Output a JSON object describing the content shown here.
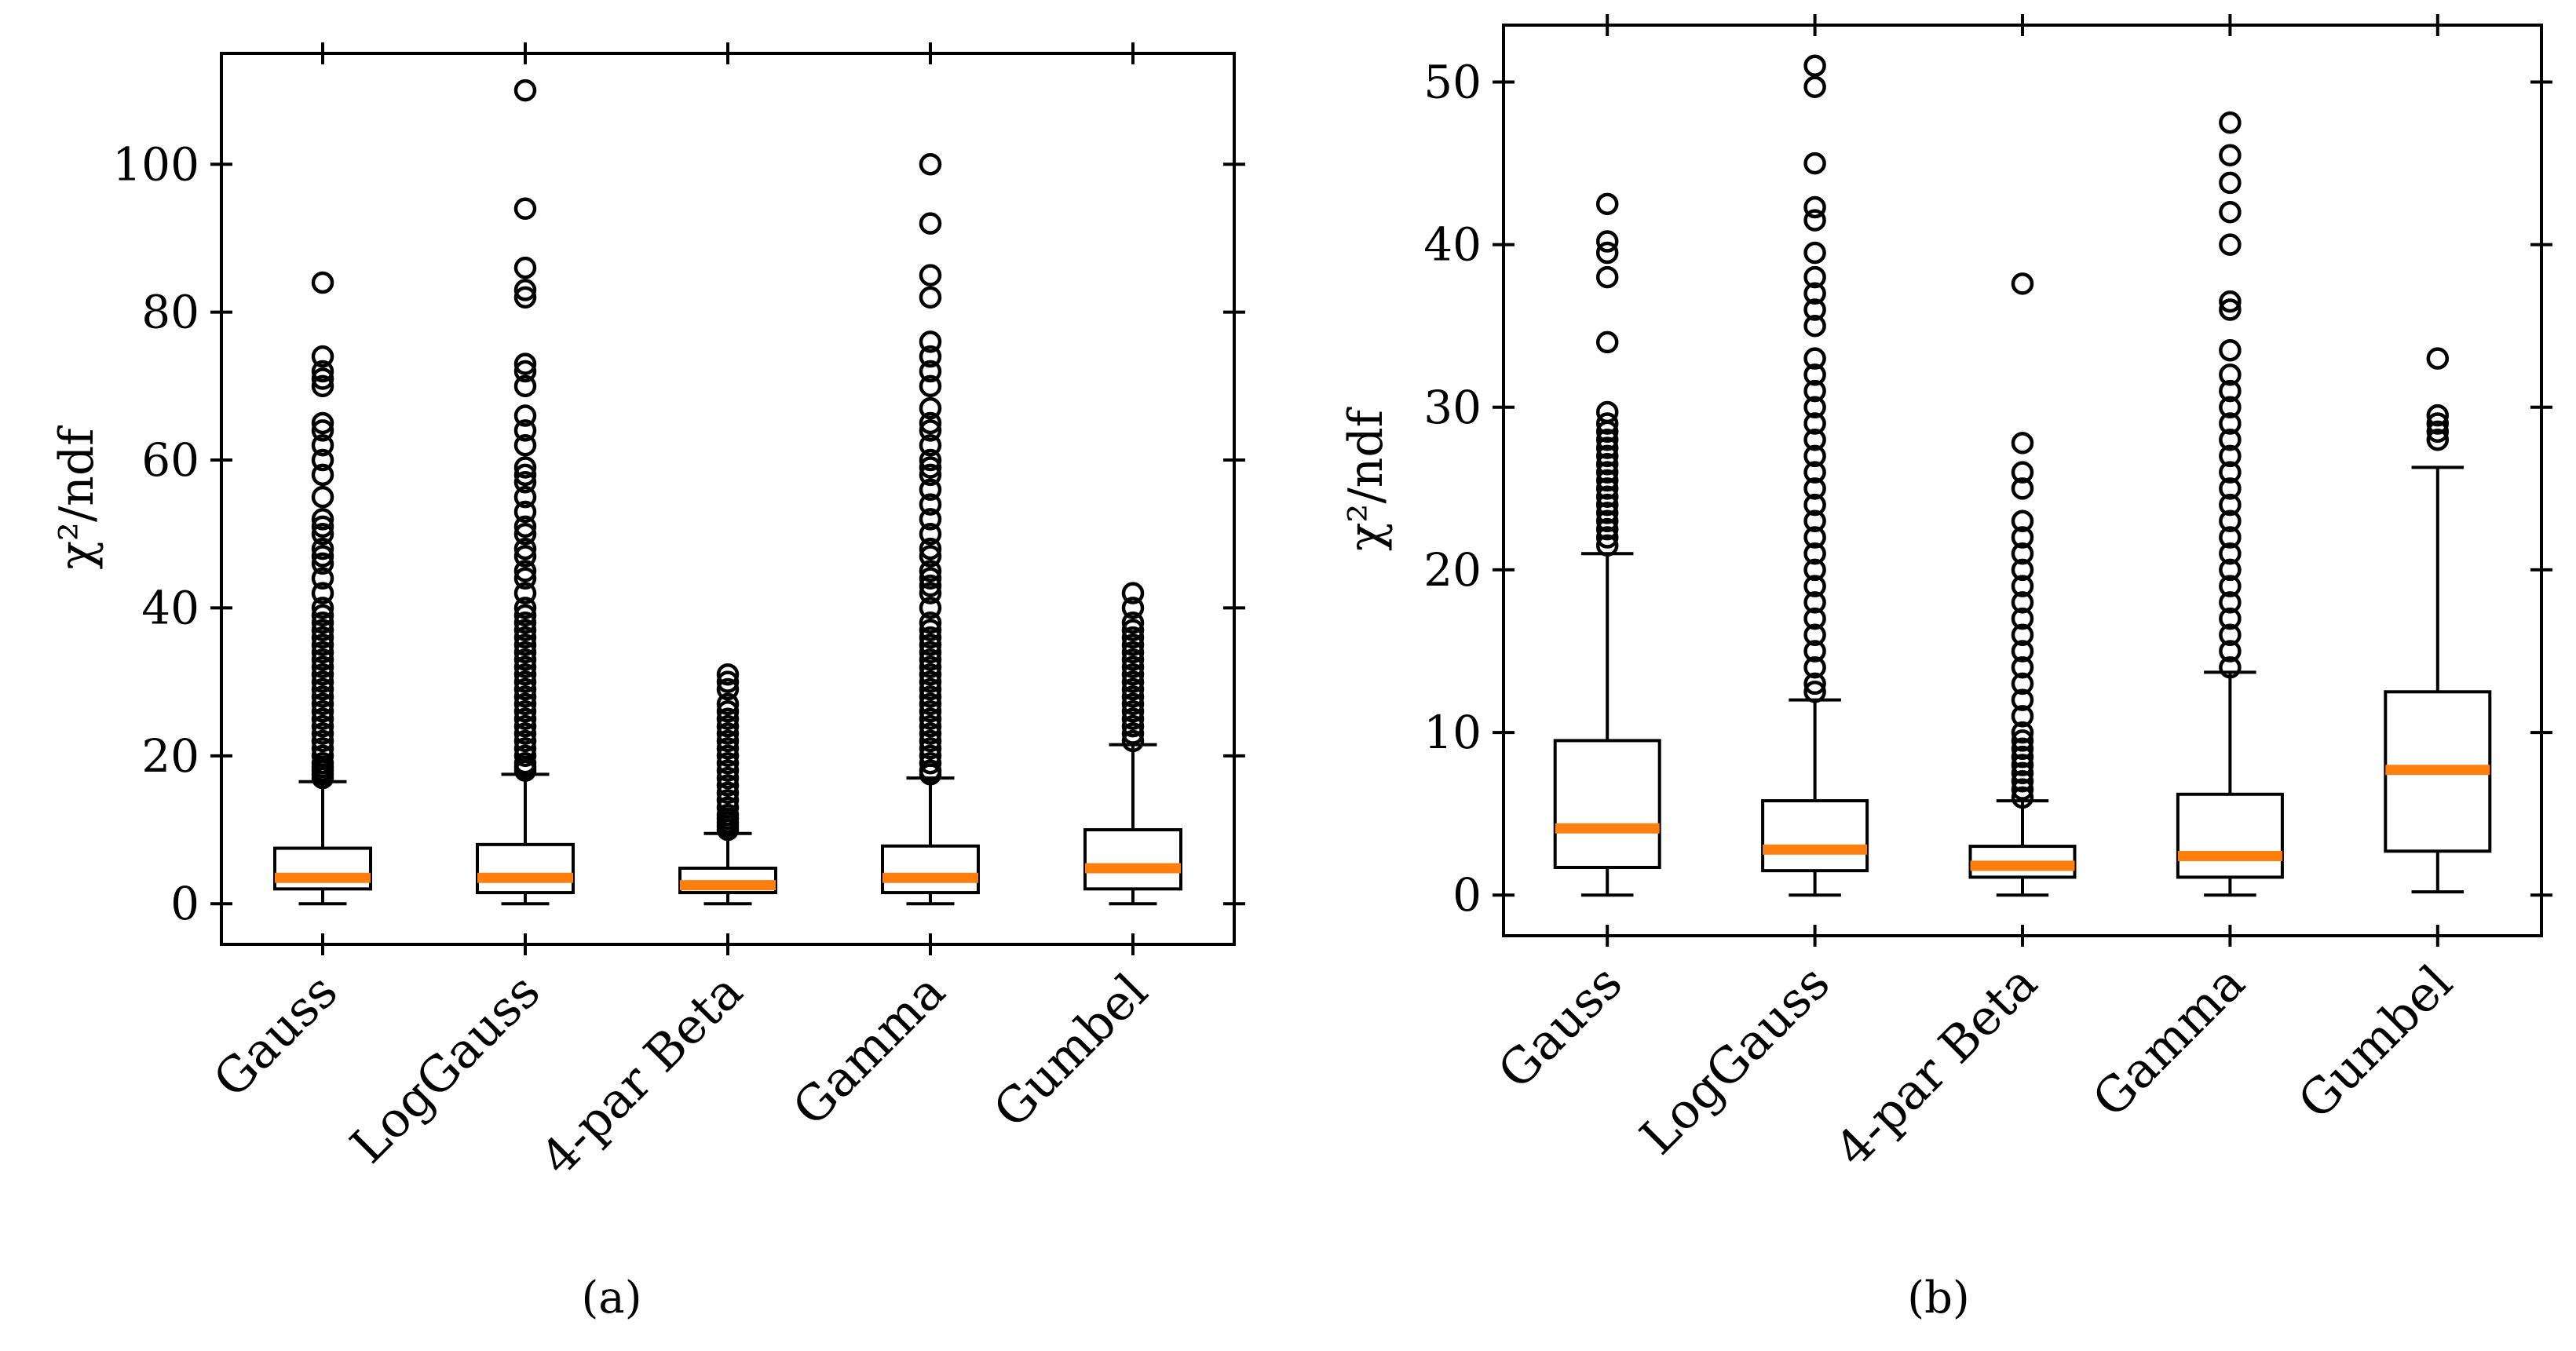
{
  "colors": {
    "median": "#ff7f0e",
    "box": "#000000"
  },
  "chart_data": [
    {
      "type": "boxplot",
      "panel": "a",
      "panel_label": "(a)",
      "ylabel": "χ²/ndf",
      "ylim": [
        -5.5,
        115
      ],
      "yticks": [
        0,
        20,
        40,
        60,
        80,
        100
      ],
      "categories": [
        "Gauss",
        "LogGauss",
        "4-par Beta",
        "Gamma",
        "Gumbel"
      ],
      "boxes": [
        {
          "name": "Gauss",
          "whisker_low": 0,
          "q1": 2,
          "median": 3.5,
          "q3": 7.5,
          "whisker_high": 16.5,
          "outliers": [
            17,
            17.5,
            18,
            18.5,
            19,
            20,
            21,
            22,
            23,
            24,
            25,
            26,
            27,
            28,
            29,
            30,
            31,
            32,
            33,
            34,
            35,
            36,
            37,
            38,
            39,
            40,
            42,
            44,
            46,
            47,
            48,
            50,
            51,
            52,
            55,
            58,
            60,
            62,
            64,
            65,
            70,
            71,
            72,
            74,
            84
          ]
        },
        {
          "name": "LogGauss",
          "whisker_low": 0,
          "q1": 1.5,
          "median": 3.5,
          "q3": 8,
          "whisker_high": 17.5,
          "outliers": [
            18,
            18.5,
            19,
            20,
            21,
            22,
            23,
            24,
            25,
            26,
            27,
            28,
            29,
            30,
            31,
            32,
            33,
            34,
            35,
            36,
            37,
            38,
            39,
            40,
            42,
            44,
            45,
            47,
            48,
            50,
            51,
            53,
            55,
            57,
            58,
            59,
            62,
            64,
            66,
            70,
            72,
            73,
            82,
            83,
            86,
            94,
            110
          ]
        },
        {
          "name": "4-par Beta",
          "whisker_low": 0,
          "q1": 1.5,
          "median": 2.5,
          "q3": 4.8,
          "whisker_high": 9.5,
          "outliers": [
            10,
            10.5,
            11,
            11.5,
            12,
            13,
            14,
            15,
            16,
            17,
            18,
            19,
            20,
            21,
            22,
            23,
            24,
            25,
            26,
            27,
            29,
            30,
            31
          ]
        },
        {
          "name": "Gamma",
          "whisker_low": 0,
          "q1": 1.5,
          "median": 3.5,
          "q3": 7.8,
          "whisker_high": 17,
          "outliers": [
            17.5,
            18,
            19,
            20,
            21,
            22,
            23,
            24,
            25,
            26,
            27,
            28,
            29,
            30,
            31,
            32,
            33,
            34,
            35,
            36,
            37,
            38,
            40,
            42,
            43,
            44,
            45,
            47,
            48,
            50,
            52,
            54,
            56,
            58,
            59,
            60,
            62,
            64,
            65,
            67,
            70,
            72,
            74,
            76,
            82,
            85,
            92,
            100
          ]
        },
        {
          "name": "Gumbel",
          "whisker_low": 0,
          "q1": 2,
          "median": 4.8,
          "q3": 10,
          "whisker_high": 21.5,
          "outliers": [
            22,
            23,
            24,
            25,
            26,
            27,
            28,
            29,
            30,
            31,
            32,
            33,
            34,
            35,
            36,
            37,
            38,
            40,
            42
          ]
        }
      ]
    },
    {
      "type": "boxplot",
      "panel": "b",
      "panel_label": "(b)",
      "ylabel": "χ²/ndf",
      "ylim": [
        -2.5,
        53.5
      ],
      "yticks": [
        0,
        10,
        20,
        30,
        40,
        50
      ],
      "categories": [
        "Gauss",
        "LogGauss",
        "4-par Beta",
        "Gamma",
        "Gumbel"
      ],
      "boxes": [
        {
          "name": "Gauss",
          "whisker_low": 0,
          "q1": 1.7,
          "median": 4.1,
          "q3": 9.5,
          "whisker_high": 21,
          "outliers": [
            21.5,
            22,
            22.5,
            23,
            23.5,
            24,
            24.5,
            25,
            25.5,
            26,
            26.5,
            27,
            27.5,
            28,
            28.5,
            29,
            29.7,
            34,
            38,
            39.5,
            40.2,
            42.5
          ]
        },
        {
          "name": "LogGauss",
          "whisker_low": 0,
          "q1": 1.5,
          "median": 2.8,
          "q3": 5.8,
          "whisker_high": 12,
          "outliers": [
            12.5,
            13,
            14,
            15,
            16,
            17,
            18,
            19,
            20,
            21,
            22,
            23,
            24,
            25,
            26,
            27,
            28,
            29,
            30,
            31,
            32,
            33,
            35,
            36,
            37,
            38,
            39.5,
            41.5,
            42.3,
            45,
            49.7,
            51
          ]
        },
        {
          "name": "4-par Beta",
          "whisker_low": 0,
          "q1": 1.1,
          "median": 1.8,
          "q3": 3,
          "whisker_high": 5.8,
          "outliers": [
            6,
            6.5,
            7,
            7.5,
            8,
            8.5,
            9,
            9.5,
            10,
            11,
            12,
            13,
            14,
            15,
            16,
            17,
            18,
            19,
            20,
            21,
            22,
            23,
            25,
            26,
            27.8,
            37.6
          ]
        },
        {
          "name": "Gamma",
          "whisker_low": 0,
          "q1": 1.1,
          "median": 2.4,
          "q3": 6.2,
          "whisker_high": 13.7,
          "outliers": [
            14,
            15,
            16,
            17,
            18,
            19,
            20,
            21,
            22,
            23,
            24,
            25,
            26,
            27,
            28,
            29,
            30,
            31,
            32,
            33.5,
            36,
            36.5,
            40,
            42,
            43.8,
            45.5,
            47.5
          ]
        },
        {
          "name": "Gumbel",
          "whisker_low": 0.2,
          "q1": 2.7,
          "median": 7.7,
          "q3": 12.5,
          "whisker_high": 26.3,
          "outliers": [
            28,
            28.5,
            29,
            29.5,
            33
          ]
        }
      ]
    }
  ]
}
